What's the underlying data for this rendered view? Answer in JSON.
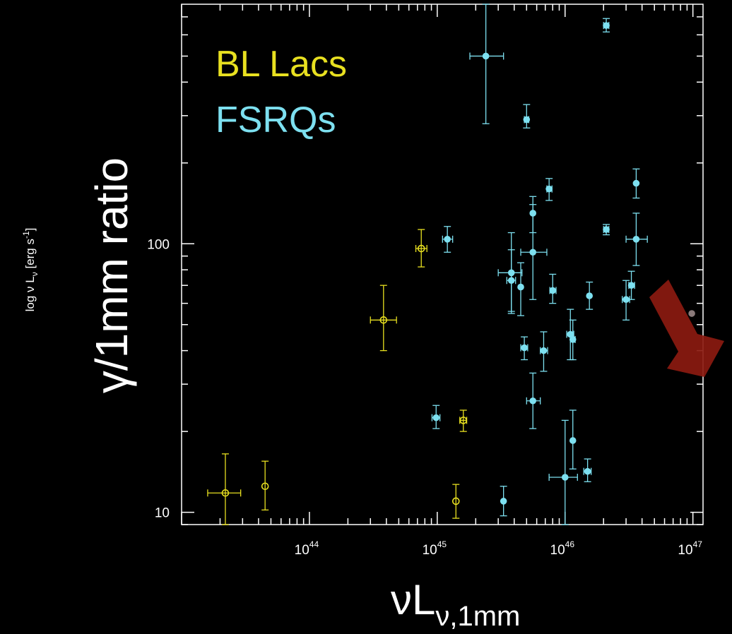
{
  "chart_data": {
    "type": "scatter",
    "xscale": "log",
    "yscale": "log",
    "xlim": [
      1e+43,
      1.2e+47
    ],
    "ylim": [
      9,
      780
    ],
    "x_ticks": [
      {
        "value": 1e+44,
        "base": "10",
        "exp": "44"
      },
      {
        "value": 1e+45,
        "base": "10",
        "exp": "45"
      },
      {
        "value": 1e+46,
        "base": "10",
        "exp": "46"
      },
      {
        "value": 1e+47,
        "base": "10",
        "exp": "47"
      }
    ],
    "y_ticks": [
      {
        "value": 10,
        "label": "10"
      },
      {
        "value": 100,
        "label": "100"
      }
    ],
    "ylabel": "γ/1mm ratio",
    "ylabel_small": {
      "prefix": "log ν L",
      "sub": "ν",
      "unit": " [erg s",
      "sup": "-1",
      "close": "]"
    },
    "xlabel": {
      "main": "νL",
      "sub": "ν,1mm"
    },
    "series": [
      {
        "name": "BL Lacs",
        "color": "#e8e020",
        "marker": "open-circle",
        "points": [
          {
            "x": 2.2e+43,
            "y": 11.8,
            "xerr": [
              1.6e+43,
              2.9e+43
            ],
            "yerr": [
              9,
              16.5
            ]
          },
          {
            "x": 4.5e+43,
            "y": 12.5,
            "xerr": null,
            "yerr": [
              10.2,
              15.5
            ]
          },
          {
            "x": 3.8e+44,
            "y": 52,
            "xerr": [
              3e+44,
              4.8e+44
            ],
            "yerr": [
              40,
              70
            ]
          },
          {
            "x": 7.5e+44,
            "y": 96,
            "xerr": [
              6.8e+44,
              8.3e+44
            ],
            "yerr": [
              82,
              113
            ]
          },
          {
            "x": 1.4e+45,
            "y": 11.0,
            "xerr": null,
            "yerr": [
              9.5,
              12.7
            ]
          },
          {
            "x": 1.6e+45,
            "y": 22,
            "xerr": [
              1.5e+45,
              1.7e+45
            ],
            "yerr": [
              20,
              24
            ]
          }
        ]
      },
      {
        "name": "FSRQs",
        "color": "#7de0f0",
        "marker": "filled-circle",
        "points": [
          {
            "x": 9.8e+44,
            "y": 22.5,
            "xerr": [
              9.1e+44,
              1.05e+45
            ],
            "yerr": [
              20.5,
              25
            ]
          },
          {
            "x": 1.2e+45,
            "y": 104,
            "xerr": [
              1.1e+45,
              1.32e+45
            ],
            "yerr": [
              93,
              116
            ]
          },
          {
            "x": 2.4e+45,
            "y": 500,
            "xerr": [
              1.8e+45,
              3.3e+45
            ],
            "yerr": [
              280,
              780
            ]
          },
          {
            "x": 3.3e+45,
            "y": 11.0,
            "xerr": null,
            "yerr": [
              9.7,
              12.5
            ]
          },
          {
            "x": 3.8e+45,
            "y": 78,
            "xerr": [
              3e+45,
              4.6e+45
            ],
            "yerr": [
              55,
              110
            ]
          },
          {
            "x": 3.8e+45,
            "y": 73,
            "xerr": [
              3.5e+45,
              4.1e+45
            ],
            "yerr": [
              56,
              95
            ]
          },
          {
            "x": 4.5e+45,
            "y": 69,
            "xerr": null,
            "yerr": [
              54,
              85
            ]
          },
          {
            "x": 4.8e+45,
            "y": 41,
            "xerr": [
              4.5e+45,
              5.1e+45
            ],
            "yerr": [
              37,
              45
            ]
          },
          {
            "x": 5e+45,
            "y": 290,
            "xerr": [
              4.8e+45,
              5.2e+45
            ],
            "yerr": [
              270,
              330
            ]
          },
          {
            "x": 5.6e+45,
            "y": 93,
            "xerr": [
              4.5e+45,
              7.2e+45
            ],
            "yerr": [
              62,
              140
            ]
          },
          {
            "x": 5.6e+45,
            "y": 130,
            "xerr": null,
            "yerr": [
              110,
              150
            ]
          },
          {
            "x": 5.6e+45,
            "y": 26,
            "xerr": [
              5e+45,
              6.4e+45
            ],
            "yerr": [
              20.5,
              33
            ]
          },
          {
            "x": 6.8e+45,
            "y": 40,
            "xerr": [
              6.4e+45,
              7.3e+45
            ],
            "yerr": [
              33.5,
              47
            ]
          },
          {
            "x": 7.5e+45,
            "y": 160,
            "xerr": [
              7.2e+45,
              7.9e+45
            ],
            "yerr": [
              145,
              175
            ]
          },
          {
            "x": 8e+45,
            "y": 67,
            "xerr": [
              7.6e+45,
              8.5e+45
            ],
            "yerr": [
              60,
              77
            ]
          },
          {
            "x": 1e+46,
            "y": 13.5,
            "xerr": [
              7.5e+45,
              1.25e+46
            ],
            "yerr": [
              9,
              22
            ]
          },
          {
            "x": 1.1e+46,
            "y": 46,
            "xerr": [
              1.03e+46,
              1.17e+46
            ],
            "yerr": [
              37,
              57
            ]
          },
          {
            "x": 1.15e+46,
            "y": 44,
            "xerr": [
              1.1e+46,
              1.2e+46
            ],
            "yerr": [
              37,
              52
            ]
          },
          {
            "x": 1.15e+46,
            "y": 18.5,
            "xerr": null,
            "yerr": [
              14.5,
              24
            ]
          },
          {
            "x": 1.5e+46,
            "y": 14.2,
            "xerr": [
              1.4e+46,
              1.6e+46
            ],
            "yerr": [
              13,
              15.8
            ]
          },
          {
            "x": 1.55e+46,
            "y": 64,
            "xerr": null,
            "yerr": [
              57,
              72
            ]
          },
          {
            "x": 2.1e+46,
            "y": 113,
            "xerr": [
              2e+46,
              2.2e+46
            ],
            "yerr": [
              108,
              118
            ]
          },
          {
            "x": 2.1e+46,
            "y": 650,
            "xerr": [
              2e+46,
              2.2e+46
            ],
            "yerr": [
              615,
              690
            ]
          },
          {
            "x": 3e+46,
            "y": 62,
            "xerr": [
              2.8e+46,
              3.2e+46
            ],
            "yerr": [
              52,
              73
            ]
          },
          {
            "x": 3.3e+46,
            "y": 70,
            "xerr": [
              3.15e+46,
              3.5e+46
            ],
            "yerr": [
              62,
              79
            ]
          },
          {
            "x": 3.6e+46,
            "y": 104,
            "xerr": [
              3e+46,
              4.4e+46
            ],
            "yerr": [
              83,
              130
            ]
          },
          {
            "x": 3.6e+46,
            "y": 168,
            "xerr": null,
            "yerr": [
              148,
              190
            ]
          }
        ]
      },
      {
        "name": "",
        "color": "#8a7a7a",
        "marker": "filled-circle",
        "points": [
          {
            "x": 9.8e+46,
            "y": 55,
            "xerr": null,
            "yerr": null
          }
        ]
      }
    ],
    "legend": {
      "placement": "top-left",
      "entries": [
        {
          "label": "BL Lacs",
          "color": "#e8e020"
        },
        {
          "label": "FSRQs",
          "color": "#7de0f0"
        }
      ]
    },
    "annotation_arrow": {
      "color": "#8b1a10",
      "direction": "down-right"
    }
  }
}
